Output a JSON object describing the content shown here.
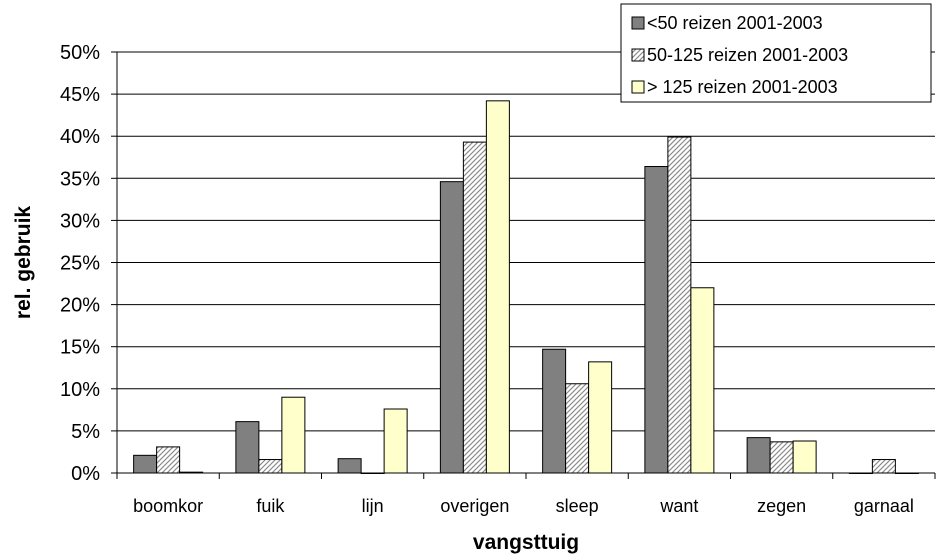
{
  "chart_data": {
    "type": "bar",
    "categories": [
      "boomkor",
      "fuik",
      "lijn",
      "overigen",
      "sleep",
      "want",
      "zegen",
      "garnaal"
    ],
    "series": [
      {
        "name": "<50 reizen 2001-2003",
        "values": [
          2.1,
          6.1,
          1.7,
          34.6,
          14.7,
          36.4,
          4.2,
          0.0
        ],
        "color": "#808080",
        "pattern": "solid"
      },
      {
        "name": "50-125 reizen 2001-2003",
        "values": [
          3.1,
          1.6,
          0.0,
          39.3,
          10.6,
          39.9,
          3.7,
          1.6
        ],
        "color": "#c0c0c0",
        "pattern": "hatched"
      },
      {
        "name": "> 125 reizen 2001-2003",
        "values": [
          0.1,
          9.0,
          7.6,
          44.2,
          13.2,
          22.0,
          3.8,
          0.0
        ],
        "color": "#ffffcc",
        "pattern": "solid"
      }
    ],
    "xlabel": "vangsttuig",
    "ylabel": "rel. gebruik",
    "ylim": [
      0,
      50
    ],
    "yticks": [
      "0%",
      "5%",
      "10%",
      "15%",
      "20%",
      "25%",
      "30%",
      "35%",
      "40%",
      "45%",
      "50%"
    ],
    "grid": true,
    "legend_position": "top-right"
  }
}
